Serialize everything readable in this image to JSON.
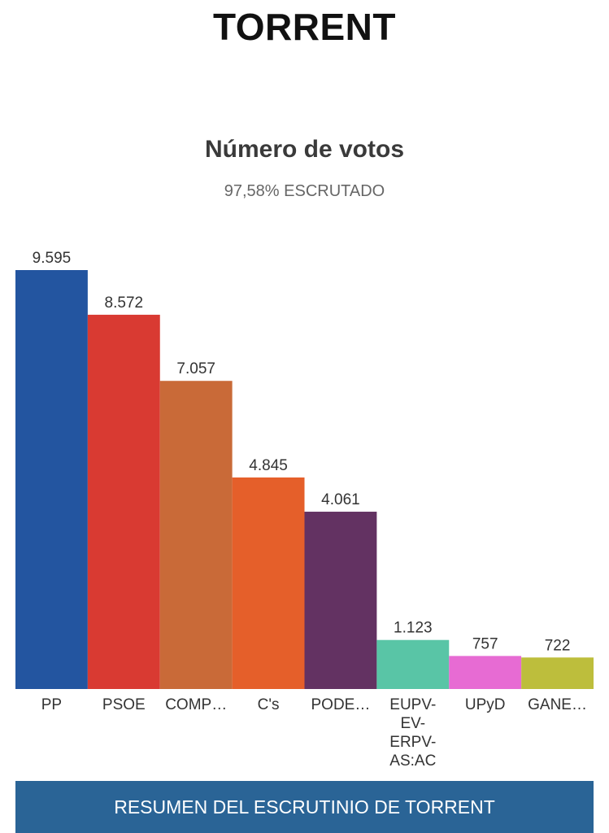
{
  "page": {
    "city_title": "TORRENT",
    "chart_title": "Número de votos",
    "chart_subtitle": "97,58% ESCRUTADO",
    "summary_button_label": "RESUMEN DEL ESCRUTINIO DE TORRENT"
  },
  "chart_data": {
    "type": "bar",
    "title": "Número de votos",
    "subtitle": "97,58% ESCRUTADO",
    "categories": [
      "PP",
      "PSOE",
      "COMP…",
      "C's",
      "PODE…",
      "EUPV-EV-ERPV-AS:AC",
      "UPyD",
      "GANE…"
    ],
    "category_display_lines": [
      [
        "PP"
      ],
      [
        "PSOE"
      ],
      [
        "COMP…"
      ],
      [
        "C's"
      ],
      [
        "PODE…"
      ],
      [
        "EUPV-",
        "EV-",
        "ERPV-",
        "AS:AC"
      ],
      [
        "UPyD"
      ],
      [
        "GANE…"
      ]
    ],
    "values": [
      9595,
      8572,
      7057,
      4845,
      4061,
      1123,
      757,
      722
    ],
    "value_labels": [
      "9.595",
      "8.572",
      "7.057",
      "4.845",
      "4.061",
      "1.123",
      "757",
      "722"
    ],
    "colors": [
      "#2355a0",
      "#d93a32",
      "#c96a38",
      "#e55f2a",
      "#633262",
      "#59c5a6",
      "#e76bd3",
      "#bdbe3c"
    ],
    "xlabel": "",
    "ylabel": "",
    "grid": false,
    "legend": "none"
  }
}
